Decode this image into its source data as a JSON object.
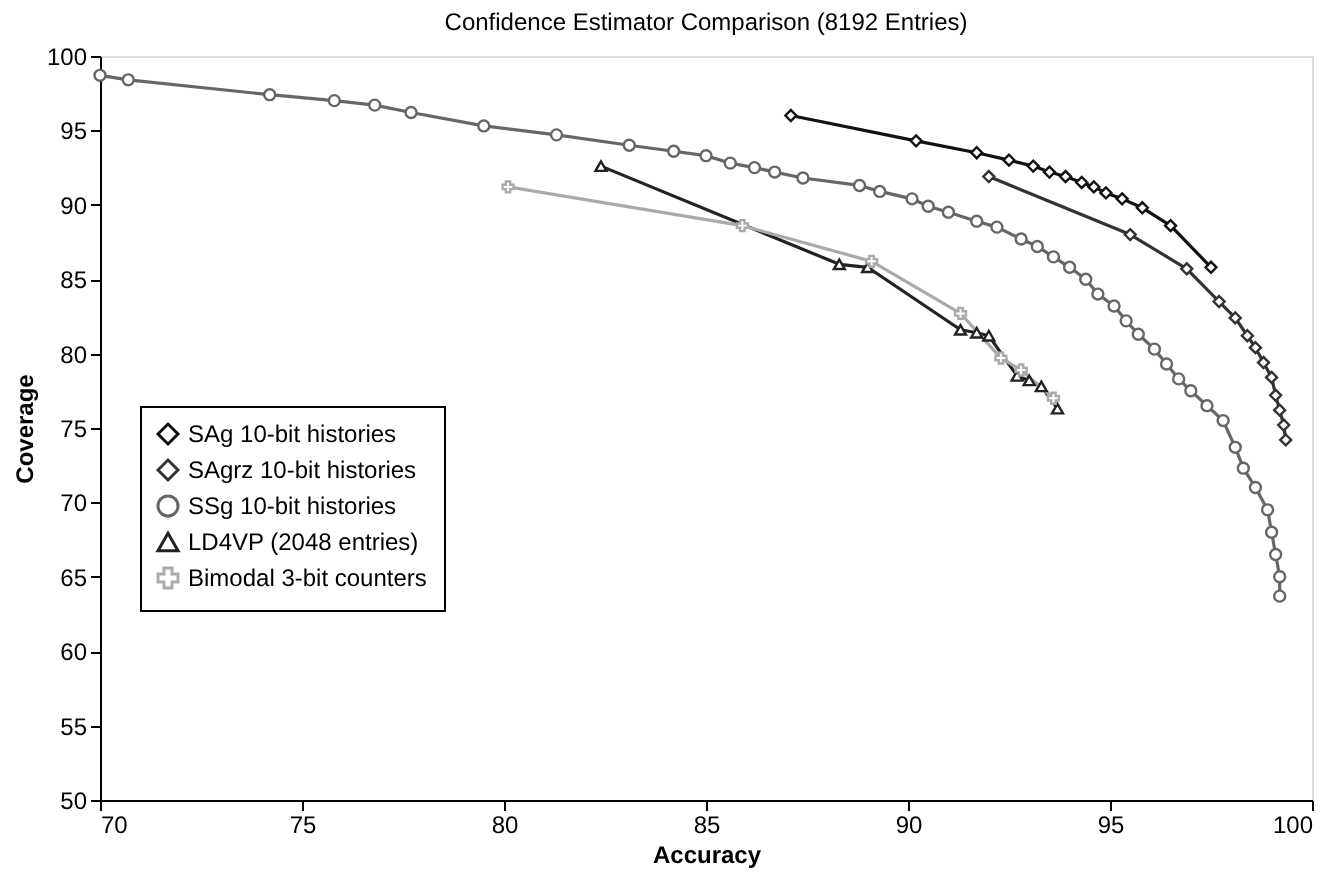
{
  "chart_data": {
    "type": "line",
    "title": "Confidence Estimator Comparison (8192 Entries)",
    "xlabel": "Accuracy",
    "ylabel": "Coverage",
    "xlim": [
      70,
      100
    ],
    "xticks": [
      70,
      75,
      80,
      85,
      90,
      95,
      100
    ],
    "ylim": [
      50,
      100
    ],
    "yticks": [
      50,
      55,
      60,
      65,
      70,
      75,
      80,
      85,
      90,
      95,
      100
    ],
    "grid": false,
    "legend": "left",
    "series": [
      {
        "name": "SAg 10-bit histories",
        "color": "#111111",
        "marker": "diamond",
        "x": [
          87.1,
          90.2,
          91.7,
          92.5,
          93.1,
          93.5,
          93.9,
          94.3,
          94.6,
          94.9,
          95.3,
          95.8,
          96.5,
          97.5
        ],
        "values": [
          96.0,
          94.3,
          93.5,
          93.0,
          92.6,
          92.2,
          91.9,
          91.5,
          91.2,
          90.8,
          90.4,
          89.8,
          88.6,
          85.8
        ]
      },
      {
        "name": "SAgrz 10-bit histories",
        "color": "#333333",
        "marker": "diamond",
        "x": [
          92.0,
          95.5,
          96.9,
          97.7,
          98.1,
          98.4,
          98.6,
          98.8,
          99.0,
          99.1,
          99.2,
          99.3,
          99.35
        ],
        "values": [
          91.9,
          88.0,
          85.7,
          83.5,
          82.4,
          81.2,
          80.4,
          79.4,
          78.4,
          77.2,
          76.2,
          75.2,
          74.2
        ]
      },
      {
        "name": "SSg 10-bit histories",
        "color": "#666666",
        "marker": "circle",
        "x": [
          70,
          70.7,
          74.2,
          75.8,
          76.8,
          77.7,
          79.5,
          81.3,
          83.1,
          84.2,
          85.0,
          85.6,
          86.2,
          86.7,
          87.4,
          88.8,
          89.3,
          90.1,
          90.5,
          91.0,
          91.7,
          92.2,
          92.8,
          93.2,
          93.6,
          94.0,
          94.4,
          94.7,
          95.1,
          95.4,
          95.7,
          96.1,
          96.4,
          96.7,
          97.0,
          97.4,
          97.8,
          98.1,
          98.3,
          98.6,
          98.9,
          99.0,
          99.1,
          99.2,
          99.2
        ],
        "values": [
          98.7,
          98.4,
          97.4,
          97.0,
          96.7,
          96.2,
          95.3,
          94.7,
          94.0,
          93.6,
          93.3,
          92.8,
          92.5,
          92.2,
          91.8,
          91.3,
          90.9,
          90.4,
          89.9,
          89.5,
          88.9,
          88.5,
          87.7,
          87.2,
          86.5,
          85.8,
          85.0,
          84.0,
          83.2,
          82.2,
          81.3,
          80.3,
          79.3,
          78.3,
          77.5,
          76.5,
          75.5,
          73.7,
          72.3,
          71.0,
          69.5,
          68.0,
          66.5,
          65.0,
          63.7
        ]
      },
      {
        "name": "LD4VP (2048 entries)",
        "color": "#222222",
        "marker": "triangle",
        "x": [
          82.4,
          88.3,
          89.0,
          91.3,
          91.7,
          92.0,
          92.7,
          93.0,
          93.3,
          93.7
        ],
        "values": [
          92.6,
          86.0,
          85.8,
          81.6,
          81.4,
          81.2,
          78.5,
          78.2,
          77.8,
          76.3
        ]
      },
      {
        "name": "Bimodal 3-bit counters",
        "color": "#aaaaaa",
        "marker": "cross",
        "x": [
          80.1,
          85.9,
          89.1,
          91.3,
          92.3,
          92.8,
          93.6
        ],
        "values": [
          91.2,
          88.6,
          86.2,
          82.7,
          79.7,
          78.9,
          77.0
        ]
      }
    ]
  }
}
